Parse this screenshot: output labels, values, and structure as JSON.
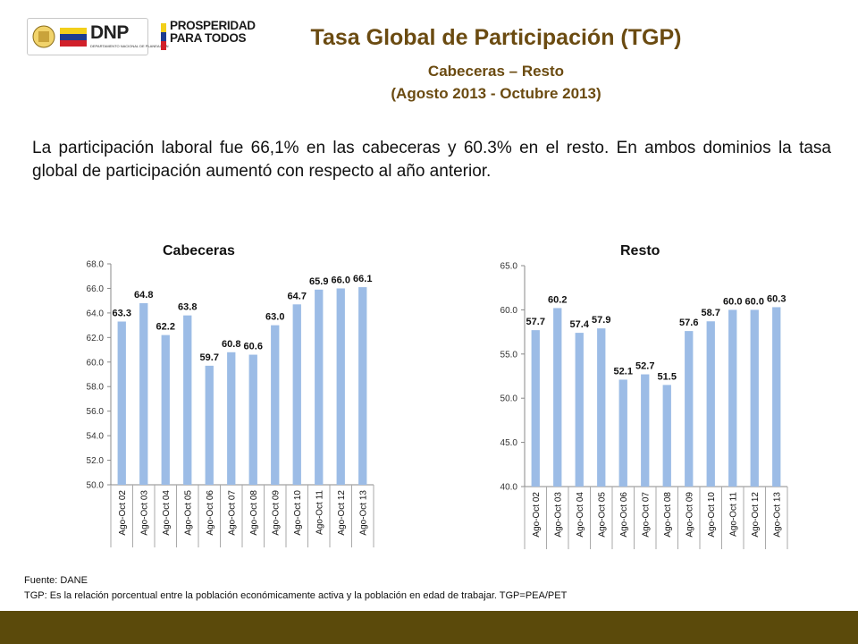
{
  "header": {
    "dnp_logo_text": "DNP",
    "dnp_subtitle": "DEPARTAMENTO NACIONAL DE PLANEACIÓN",
    "prosperidad_line1": "PROSPERIDAD",
    "prosperidad_line2": "PARA TODOS",
    "title": "Tasa Global de Participación (TGP)",
    "subtitle1": "Cabeceras – Resto",
    "subtitle2": "(Agosto 2013 - Octubre 2013)"
  },
  "intro": "La participación laboral fue 66,1% en las cabeceras y 60.3% en el resto. En ambos dominios la tasa global de participación aumentó con respecto al año anterior.",
  "footer": {
    "source": "Fuente: DANE",
    "note": "TGP: Es la relación porcentual entre la población económicamente activa y la población  en edad de trabajar. TGP=PEA/PET"
  },
  "colors": {
    "bar": "#9cbce6",
    "title": "#6b4b11",
    "footer_band": "#5b4a0b"
  },
  "chart_data": [
    {
      "type": "bar",
      "title": "Cabeceras",
      "categories": [
        "Ago-Oct 02",
        "Ago-Oct 03",
        "Ago-Oct 04",
        "Ago-Oct 05",
        "Ago-Oct 06",
        "Ago-Oct 07",
        "Ago-Oct 08",
        "Ago-Oct 09",
        "Ago-Oct 10",
        "Ago-Oct 11",
        "Ago-Oct 12",
        "Ago-Oct 13"
      ],
      "values": [
        63.3,
        64.8,
        62.2,
        63.8,
        59.7,
        60.8,
        60.6,
        63.0,
        64.7,
        65.9,
        66.0,
        66.1
      ],
      "labels": [
        "63.3",
        "64.8",
        "62.2",
        "63.8",
        "59.7",
        "60.8",
        "60.6",
        "63.0",
        "64.7",
        "65.9",
        "66.0",
        "66.1"
      ],
      "yticks": [
        "50.0",
        "52.0",
        "54.0",
        "56.0",
        "58.0",
        "60.0",
        "62.0",
        "64.0",
        "66.0",
        "68.0"
      ],
      "ylim": [
        50,
        68
      ],
      "grid": false
    },
    {
      "type": "bar",
      "title": "Resto",
      "categories": [
        "Ago-Oct 02",
        "Ago-Oct 03",
        "Ago-Oct 04",
        "Ago-Oct 05",
        "Ago-Oct 06",
        "Ago-Oct 07",
        "Ago-Oct 08",
        "Ago-Oct 09",
        "Ago-Oct 10",
        "Ago-Oct 11",
        "Ago-Oct 12",
        "Ago-Oct 13"
      ],
      "values": [
        57.7,
        60.2,
        57.4,
        57.9,
        52.1,
        52.7,
        51.5,
        57.6,
        58.7,
        60.0,
        60.0,
        60.3
      ],
      "labels": [
        "57.7",
        "60.2",
        "57.4",
        "57.9",
        "52.1",
        "52.7",
        "51.5",
        "57.6",
        "58.7",
        "60.0",
        "60.0",
        "60.3"
      ],
      "yticks": [
        "40.0",
        "45.0",
        "50.0",
        "55.0",
        "60.0",
        "65.0"
      ],
      "ylim": [
        40,
        65
      ],
      "grid": false
    }
  ]
}
